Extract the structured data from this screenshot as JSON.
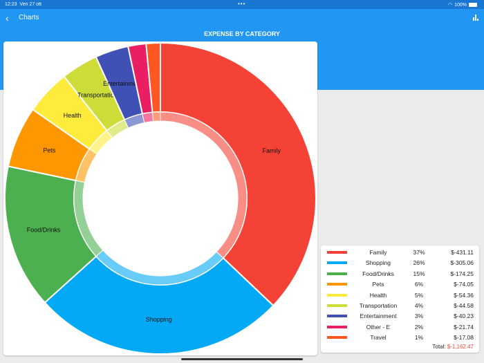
{
  "status": {
    "time": "12:23",
    "date": "Ven 27 ott",
    "dots": "•••",
    "battery": "100%"
  },
  "header": {
    "back_label": "Charts",
    "chart_title": "EXPENSE BY CATEGORY"
  },
  "chart_data": {
    "type": "pie",
    "title": "EXPENSE BY CATEGORY",
    "donut": true,
    "categories": [
      "Family",
      "Shopping",
      "Food/Drinks",
      "Pets",
      "Health",
      "Transportation",
      "Entertainment",
      "Other - E",
      "Travel"
    ],
    "values": [
      431.11,
      305.06,
      174.25,
      74.05,
      54.36,
      44.58,
      40.23,
      21.74,
      17.08
    ],
    "percents": [
      "37%",
      "26%",
      "15%",
      "6%",
      "5%",
      "4%",
      "3%",
      "2%",
      "1%"
    ],
    "amounts": [
      "$-431.11",
      "$-305.06",
      "$-174.25",
      "$-74.05",
      "$-54.36",
      "$-44.58",
      "$-40.23",
      "$-21.74",
      "$-17.08"
    ],
    "colors": [
      "#f44336",
      "#03a9f4",
      "#4caf50",
      "#ff9800",
      "#ffeb3b",
      "#cddc39",
      "#3f51b5",
      "#e91e63",
      "#ff5722"
    ],
    "slice_labels": [
      "Family",
      "Shopping",
      "Food/Drinks",
      "Pets",
      "Health",
      "Transportation",
      "Entertainment",
      "",
      ""
    ]
  },
  "legend": {
    "total_label": "Total:",
    "total_value": "$-1,162.47"
  }
}
